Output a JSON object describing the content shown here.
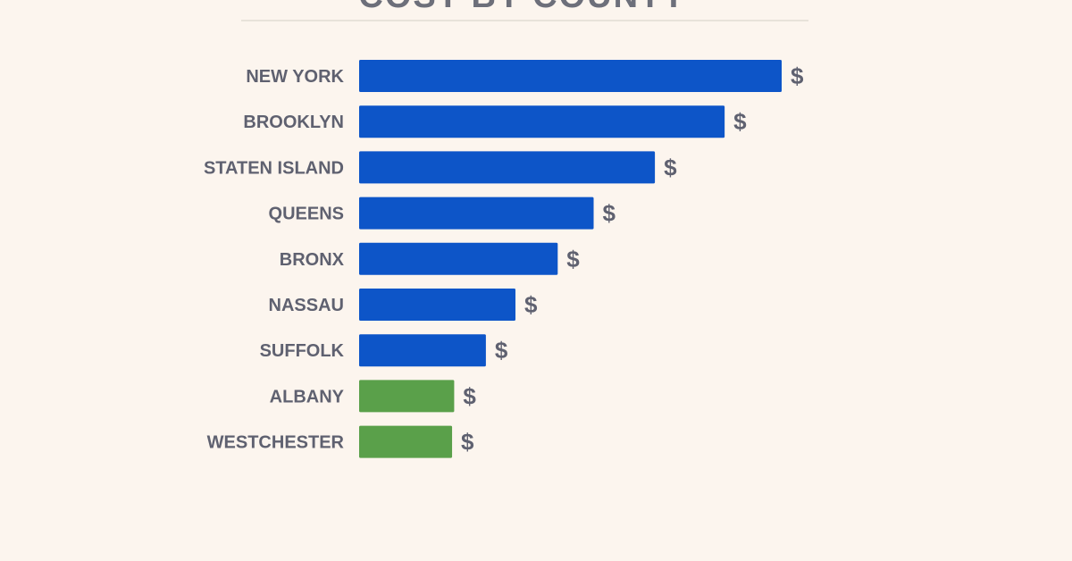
{
  "chart_data": {
    "type": "bar",
    "orientation": "horizontal",
    "title": "COST BY COUNTY",
    "xlabel": "",
    "ylabel": "",
    "categories": [
      "NEW YORK",
      "BROOKLYN",
      "STATEN ISLAND",
      "QUEENS",
      "BRONX",
      "NASSAU",
      "SUFFOLK",
      "ALBANY",
      "WESTCHESTER"
    ],
    "values": [
      100,
      86.5,
      70,
      55.5,
      47,
      37,
      30,
      22.5,
      22
    ],
    "value_labels": [
      "$",
      "$",
      "$",
      "$",
      "$",
      "$",
      "$",
      "$",
      "$"
    ],
    "bar_colors": [
      "#0d55c8",
      "#0d55c8",
      "#0d55c8",
      "#0d55c8",
      "#0d55c8",
      "#0d55c8",
      "#0d55c8",
      "#5aa04a",
      "#5aa04a"
    ],
    "xlim": [
      0,
      100
    ],
    "grid": false,
    "legend": "none"
  },
  "colors": {
    "background": "#fcf5ee",
    "primary_bar": "#0d55c8",
    "secondary_bar": "#5aa04a",
    "text": "#5f6170",
    "rule": "#dcd6cf"
  }
}
